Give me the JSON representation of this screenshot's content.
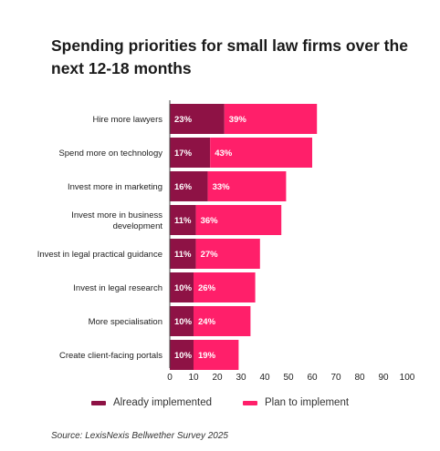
{
  "chart_data": {
    "type": "bar",
    "orientation": "horizontal",
    "stacked": true,
    "title": "Spending priorities for small law firms over the next 12-18 months",
    "categories": [
      [
        "Hire more lawyers"
      ],
      [
        "Spend more on technology"
      ],
      [
        "Invest more in marketing"
      ],
      [
        "Invest more in business",
        "development"
      ],
      [
        "Invest in legal practical guidance"
      ],
      [
        "Invest in legal research"
      ],
      [
        "More specialisation"
      ],
      [
        "Create client-facing portals"
      ]
    ],
    "series": [
      {
        "name": "Already implemented",
        "color": "#8e1245",
        "values": [
          23,
          17,
          16,
          11,
          11,
          10,
          10,
          10
        ],
        "labels": [
          "23%",
          "17%",
          "16%",
          "11%",
          "11%",
          "10%",
          "10%",
          "10%"
        ]
      },
      {
        "name": "Plan to implement",
        "color": "#ff1f6a",
        "values": [
          39,
          43,
          33,
          36,
          27,
          26,
          24,
          19
        ],
        "labels": [
          "39%",
          "43%",
          "33%",
          "36%",
          "27%",
          "26%",
          "24%",
          "19%"
        ]
      }
    ],
    "xlim": [
      0,
      100
    ],
    "xticks": [
      "0",
      "10",
      "20",
      "30",
      "40",
      "50",
      "60",
      "70",
      "80",
      "90",
      "100"
    ],
    "grid": false,
    "legend_position": "bottom"
  },
  "source": "Source: LexisNexis Bellwether Survey 2025"
}
